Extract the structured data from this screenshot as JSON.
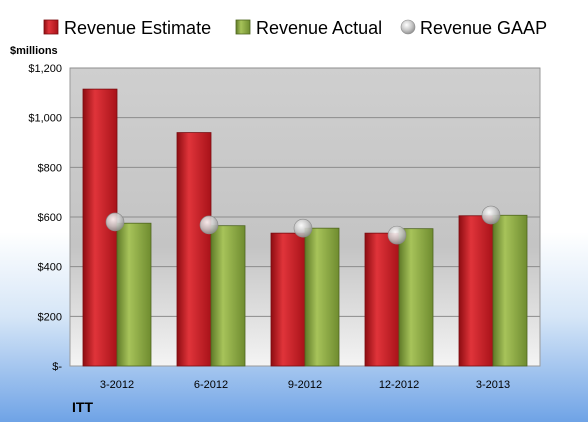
{
  "chart_data": {
    "type": "bar",
    "company": "ITT",
    "unit_label": "$millions",
    "categories": [
      "3-2012",
      "6-2012",
      "9-2012",
      "12-2012",
      "3-2013"
    ],
    "series": [
      {
        "name": "Revenue Estimate",
        "kind": "bar",
        "color": "#c0161e",
        "values": [
          1115,
          940,
          535,
          535,
          605
        ]
      },
      {
        "name": "Revenue Actual",
        "kind": "bar",
        "color": "#8aa83e",
        "values": [
          575,
          565,
          555,
          553,
          607
        ]
      },
      {
        "name": "Revenue GAAP",
        "kind": "marker",
        "color": "#b8b8b8",
        "values": [
          580,
          568,
          555,
          527,
          608
        ]
      }
    ],
    "yticks": [
      "$-",
      "$200",
      "$400",
      "$600",
      "$800",
      "$1,000",
      "$1,200"
    ],
    "ylim": [
      0,
      1200
    ],
    "grid": true,
    "legend_position": "top"
  }
}
